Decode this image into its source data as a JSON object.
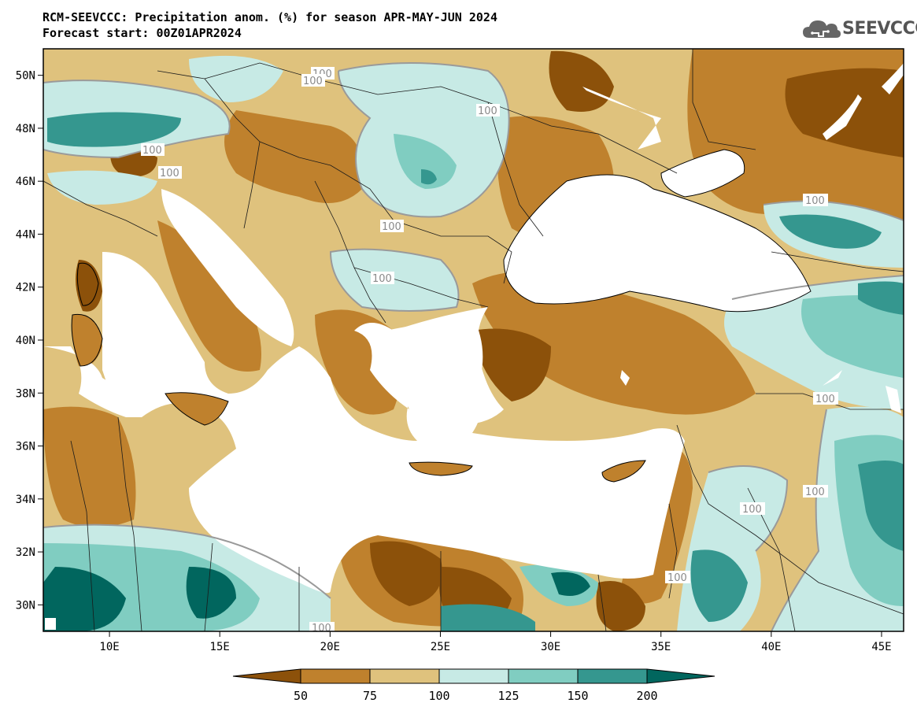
{
  "header": {
    "title_line1": "RCM-SEEVCCC: Precipitation anom. (%) for season APR-MAY-JUN 2024",
    "title_line2": "Forecast start: 00Z01APR2024"
  },
  "logo": {
    "text": "SEEVCCC",
    "icon": "cloud-icon"
  },
  "map": {
    "lon_range": [
      7,
      46
    ],
    "lat_range": [
      29,
      51
    ],
    "lon_ticks": [
      "10E",
      "15E",
      "20E",
      "25E",
      "30E",
      "35E",
      "40E",
      "45E"
    ],
    "lat_ticks": [
      "50N",
      "48N",
      "46N",
      "44N",
      "42N",
      "40N",
      "38N",
      "36N",
      "34N",
      "32N",
      "30N"
    ],
    "contour_labels": [
      "100",
      "100",
      "100",
      "100",
      "100",
      "100",
      "100",
      "100",
      "100",
      "100",
      "100",
      "100",
      "100"
    ]
  },
  "colorbar": {
    "labels": [
      "50",
      "75",
      "100",
      "125",
      "150",
      "200"
    ],
    "colors": [
      "#8c510a",
      "#bf812d",
      "#dfc27d",
      "#c7eae5",
      "#80cdc1",
      "#35978f",
      "#01665e"
    ]
  },
  "colors": {
    "c_lt50": "#8c510a",
    "c_50_75": "#bf812d",
    "c_75_100": "#dfc27d",
    "c_100_125": "#c7eae5",
    "c_125_150": "#80cdc1",
    "c_150_200": "#35978f",
    "c_gt200": "#01665e",
    "water": "#ffffff"
  }
}
